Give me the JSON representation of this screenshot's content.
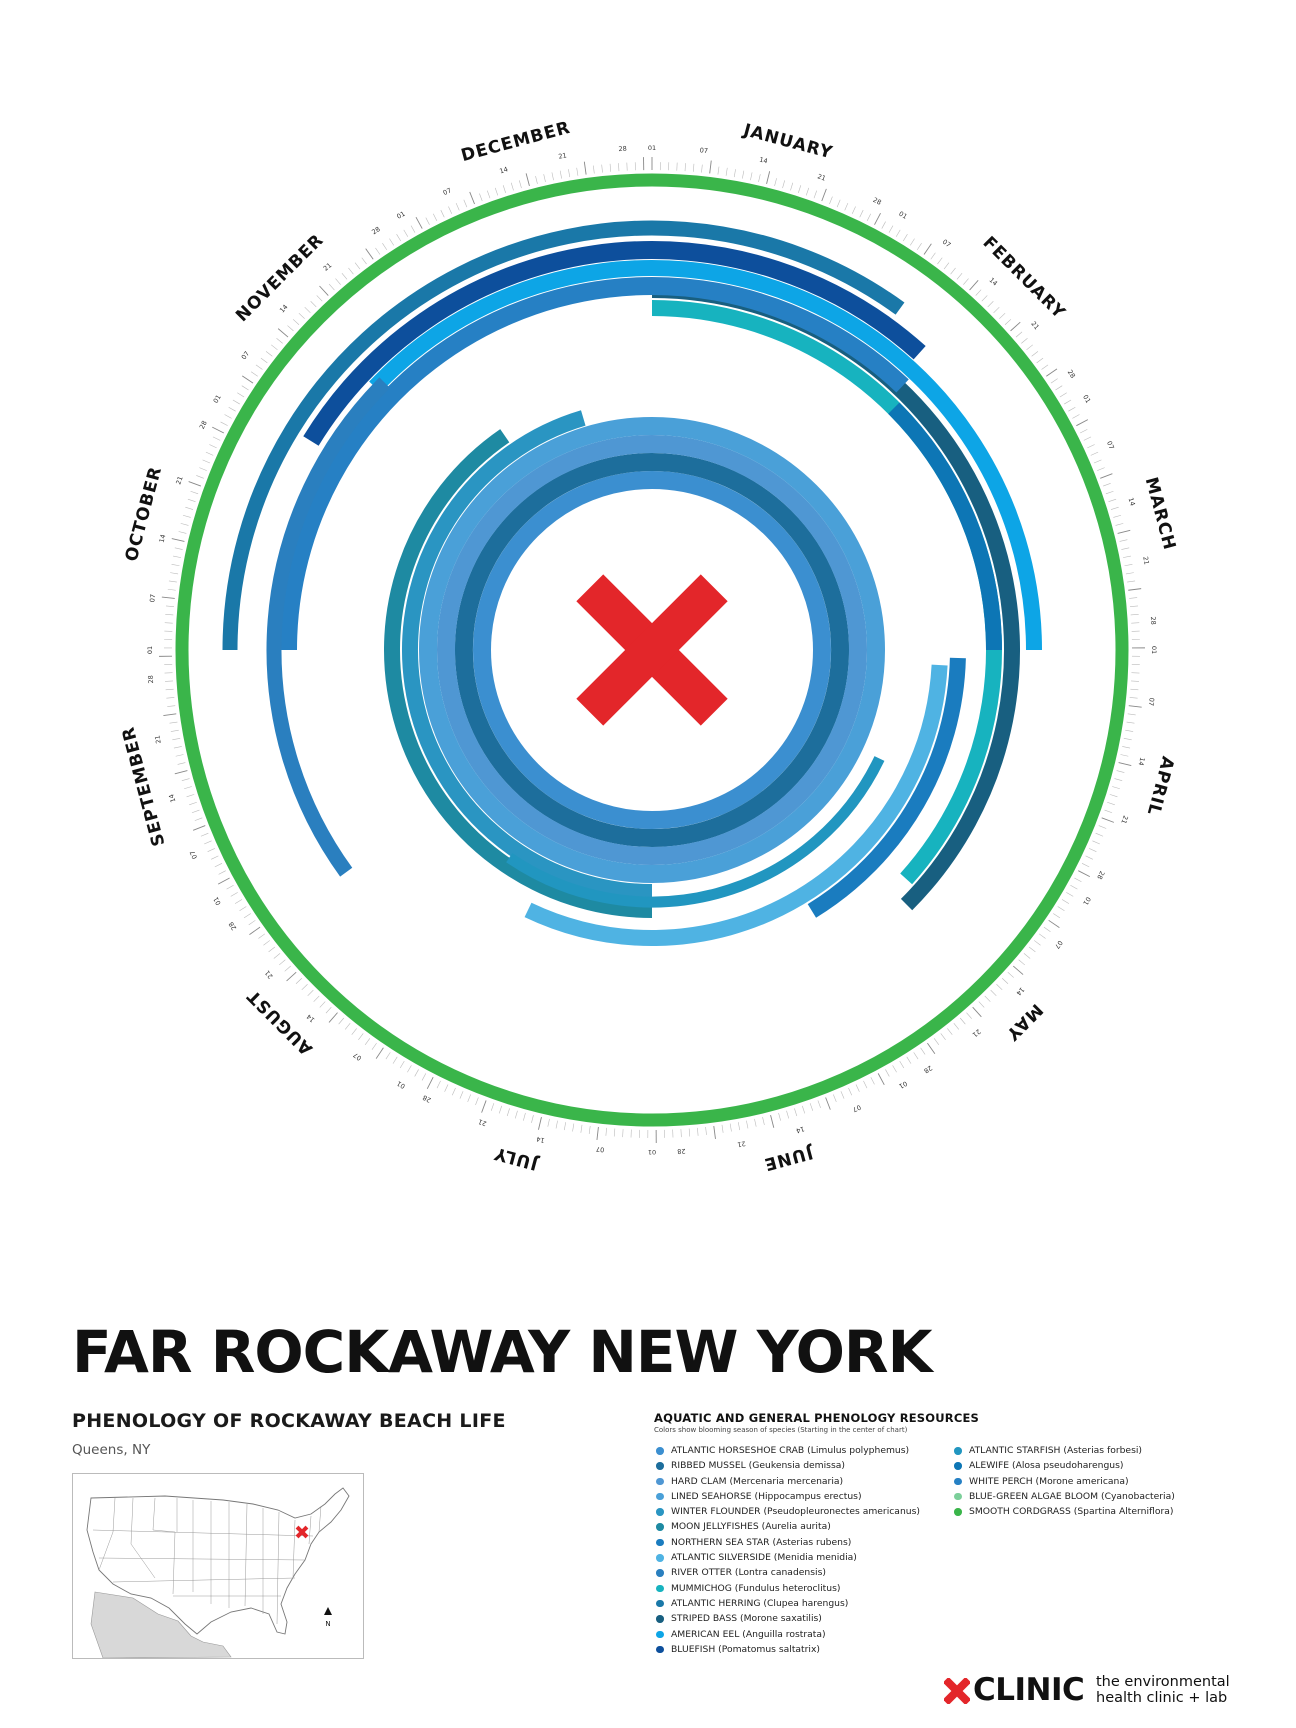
{
  "chart_data": {
    "type": "radial-phenology",
    "months": [
      "JANUARY",
      "FEBRUARY",
      "MARCH",
      "APRIL",
      "MAY",
      "JUNE",
      "JULY",
      "AUGUST",
      "SEPTEMBER",
      "OCTOBER",
      "NOVEMBER",
      "DECEMBER"
    ],
    "tick_day_labels": [
      "01",
      "07",
      "14",
      "21",
      "28"
    ],
    "axis": "calendar year clockwise starting January at top (months)",
    "center_mark": "red-x",
    "series": [
      {
        "name": "ATLANTIC HORSESHOE CRAB",
        "color": "#3b8fd0",
        "start_month": 0.0,
        "end_month": 12.0
      },
      {
        "name": "RIBBED MUSSEL",
        "color": "#1d6e9c",
        "start_month": 0.0,
        "end_month": 12.0
      },
      {
        "name": "HARD CLAM",
        "color": "#4f97d3",
        "start_month": 0.0,
        "end_month": 12.0
      },
      {
        "name": "LINED SEAHORSE",
        "color": "#4aa0d8",
        "start_month": 0.0,
        "end_month": 12.0
      },
      {
        "name": "WINTER FLOUNDER",
        "color": "#2a95c2",
        "start_month": 6.0,
        "end_month": 11.45
      },
      {
        "name": "MOON JELLYFISHES",
        "color": "#1e8aa2",
        "start_month": 6.0,
        "end_month": 10.85
      },
      {
        "name": "ATLANTIC STARFISH",
        "color": "#2196c0",
        "start_month": 3.85,
        "end_month": 7.15
      },
      {
        "name": "ATLANTIC SILVERSIDE",
        "color": "#4fb3e3",
        "start_month": 3.1,
        "end_month": 6.85
      },
      {
        "name": "NORTHERN SEA STAR",
        "color": "#1a7cbf",
        "start_month": 3.05,
        "end_month": 4.95
      },
      {
        "name": "MUMMICHOG",
        "color": "#17b3bf",
        "start_month": 0.0,
        "end_month": 4.4
      },
      {
        "name": "STRIPED BASS",
        "color": "#185f80",
        "start_month": 0.0,
        "end_month": 4.5
      },
      {
        "name": "AMERICAN EEL",
        "color": "#0da5e6",
        "start_month": 10.45,
        "end_month": 3.0
      },
      {
        "name": "BLUEFISH",
        "color": "#0d4f9c",
        "start_month": 10.05,
        "end_month": 1.4
      },
      {
        "name": "ALEWIFE",
        "color": "#0d76b5",
        "start_month": 1.5,
        "end_month": 3.0
      },
      {
        "name": "WHITE PERCH",
        "color": "#2680c4",
        "start_month": 9.0,
        "end_month": 1.45
      },
      {
        "name": "RIVER OTTER",
        "color": "#2a7fbf",
        "start_month": 7.8,
        "end_month": 10.5
      },
      {
        "name": "ATLANTIC HERRING",
        "color": "#1a78a8",
        "start_month": 9.0,
        "end_month": 1.2
      },
      {
        "name": "SMOOTH CORDGRASS",
        "color": "#3ab54a",
        "start_month": 0.0,
        "end_month": 12.0
      }
    ]
  },
  "title": "FAR ROCKAWAY NEW YORK",
  "subtitle": "PHENOLOGY OF ROCKAWAY BEACH LIFE",
  "location": "Queens, NY",
  "map": {
    "marker": "red-x",
    "north_label": "N"
  },
  "legend": {
    "title": "AQUATIC AND GENERAL PHENOLOGY RESOURCES",
    "subtitle": "Colors show blooming season of species (Starting in the center of chart)",
    "col1": [
      {
        "label": "ATLANTIC HORSESHOE CRAB (Limulus polyphemus)",
        "color": "#3b8fd0"
      },
      {
        "label": "RIBBED MUSSEL (Geukensia demissa)",
        "color": "#1d6e9c"
      },
      {
        "label": "HARD CLAM (Mercenaria mercenaria)",
        "color": "#4f97d3"
      },
      {
        "label": "LINED SEAHORSE (Hippocampus erectus)",
        "color": "#4aa0d8"
      },
      {
        "label": "WINTER FLOUNDER (Pseudopleuronectes americanus)",
        "color": "#2a95c2"
      },
      {
        "label": "MOON JELLYFISHES (Aurelia aurita)",
        "color": "#1e8aa2"
      },
      {
        "label": "NORTHERN SEA STAR (Asterias rubens)",
        "color": "#1a7cbf"
      },
      {
        "label": "ATLANTIC SILVERSIDE (Menidia menidia)",
        "color": "#4fb3e3"
      },
      {
        "label": "RIVER OTTER (Lontra canadensis)",
        "color": "#2a7fbf"
      },
      {
        "label": "MUMMICHOG (Fundulus heteroclitus)",
        "color": "#17b3bf"
      },
      {
        "label": "ATLANTIC HERRING (Clupea harengus)",
        "color": "#1a78a8"
      },
      {
        "label": "STRIPED BASS (Morone saxatilis)",
        "color": "#185f80"
      },
      {
        "label": "AMERICAN EEL (Anguilla rostrata)",
        "color": "#0da5e6"
      },
      {
        "label": "BLUEFISH (Pomatomus saltatrix)",
        "color": "#0d4f9c"
      }
    ],
    "col2": [
      {
        "label": "ATLANTIC STARFISH (Asterias forbesi)",
        "color": "#2196c0"
      },
      {
        "label": "ALEWIFE (Alosa pseudoharengus)",
        "color": "#0d76b5"
      },
      {
        "label": "WHITE PERCH (Morone americana)",
        "color": "#2680c4"
      },
      {
        "label": "BLUE-GREEN ALGAE BLOOM (Cyanobacteria)",
        "color": "#7ccf9a"
      },
      {
        "label": "SMOOTH CORDGRASS (Spartina Alterniflora)",
        "color": "#3ab54a"
      }
    ]
  },
  "logo": {
    "word": "CLINIC",
    "tag_line1": "the environmental",
    "tag_line2": "health clinic + lab",
    "mark": "red-x"
  },
  "colors": {
    "accent_red": "#e3262a",
    "ring_green": "#3ab54a"
  }
}
